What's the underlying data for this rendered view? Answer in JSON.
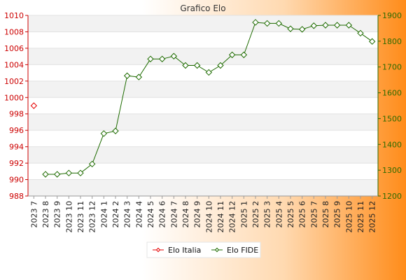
{
  "chart_data": {
    "type": "line",
    "title": "Grafico Elo",
    "categories": [
      "2023 7",
      "2023 8",
      "2023 9",
      "2023 10",
      "2023 11",
      "2023 12",
      "2024 1",
      "2024 2",
      "2024 3",
      "2024 4",
      "2024 5",
      "2024 6",
      "2024 7",
      "2024 8",
      "2024 9",
      "2024 10",
      "2024 11",
      "2024 12",
      "2025 1",
      "2025 2",
      "2025 3",
      "2025 4",
      "2025 5",
      "2025 6",
      "2025 7",
      "2025 8",
      "2025 9",
      "2025 10",
      "2025 11",
      "2025 12"
    ],
    "left_axis": {
      "ylim": [
        988,
        1010
      ],
      "ticks": [
        988,
        990,
        992,
        994,
        996,
        998,
        1000,
        1002,
        1004,
        1006,
        1008,
        1010
      ],
      "color": "#cc0000"
    },
    "right_axis": {
      "ylim": [
        1200,
        1900
      ],
      "ticks": [
        1200,
        1300,
        1400,
        1500,
        1600,
        1700,
        1800,
        1900
      ],
      "color": "#2e6b00"
    },
    "series": [
      {
        "name": "Elo Italia",
        "axis": "left",
        "color": "#e60000",
        "values": [
          999,
          null,
          null,
          null,
          null,
          null,
          null,
          null,
          null,
          null,
          null,
          null,
          null,
          null,
          null,
          null,
          null,
          null,
          null,
          null,
          null,
          null,
          null,
          null,
          null,
          null,
          null,
          null,
          null,
          null
        ]
      },
      {
        "name": "Elo FIDE",
        "axis": "right",
        "color": "#1e6b00",
        "values": [
          null,
          1284,
          1284,
          1289,
          1289,
          1324,
          1442,
          1452,
          1666,
          1661,
          1731,
          1731,
          1742,
          1706,
          1706,
          1679,
          1706,
          1747,
          1747,
          1873,
          1869,
          1869,
          1848,
          1846,
          1860,
          1862,
          1862,
          1862,
          1831,
          1799
        ]
      }
    ],
    "legend": "bottom",
    "grid": true
  }
}
